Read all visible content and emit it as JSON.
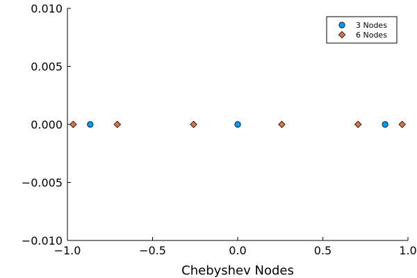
{
  "chart_data": {
    "type": "scatter",
    "title": "",
    "xlabel": "Chebyshev Nodes",
    "ylabel": "",
    "xlim": [
      -1.0,
      1.0
    ],
    "ylim": [
      -0.01,
      0.01
    ],
    "grid": false,
    "legend_position": "top-right",
    "x_ticks": [
      -1.0,
      -0.5,
      0.0,
      0.5,
      1.0
    ],
    "x_tick_labels": [
      "−1.0",
      "−0.5",
      "0.0",
      "0.5",
      "1.0"
    ],
    "y_ticks": [
      -0.01,
      -0.005,
      0.0,
      0.005,
      0.01
    ],
    "y_tick_labels": [
      "−0.010",
      "−0.005",
      "0.000",
      "0.005",
      "0.010"
    ],
    "series": [
      {
        "name": "3 Nodes",
        "marker": "circle",
        "color": "#009AFA",
        "x": [
          -0.866,
          0.0,
          0.866
        ],
        "y": [
          0,
          0,
          0
        ]
      },
      {
        "name": "6 Nodes",
        "marker": "diamond",
        "color": "#E26F46",
        "x": [
          -0.966,
          -0.707,
          -0.259,
          0.259,
          0.707,
          0.966
        ],
        "y": [
          0,
          0,
          0,
          0,
          0,
          0
        ]
      }
    ]
  }
}
